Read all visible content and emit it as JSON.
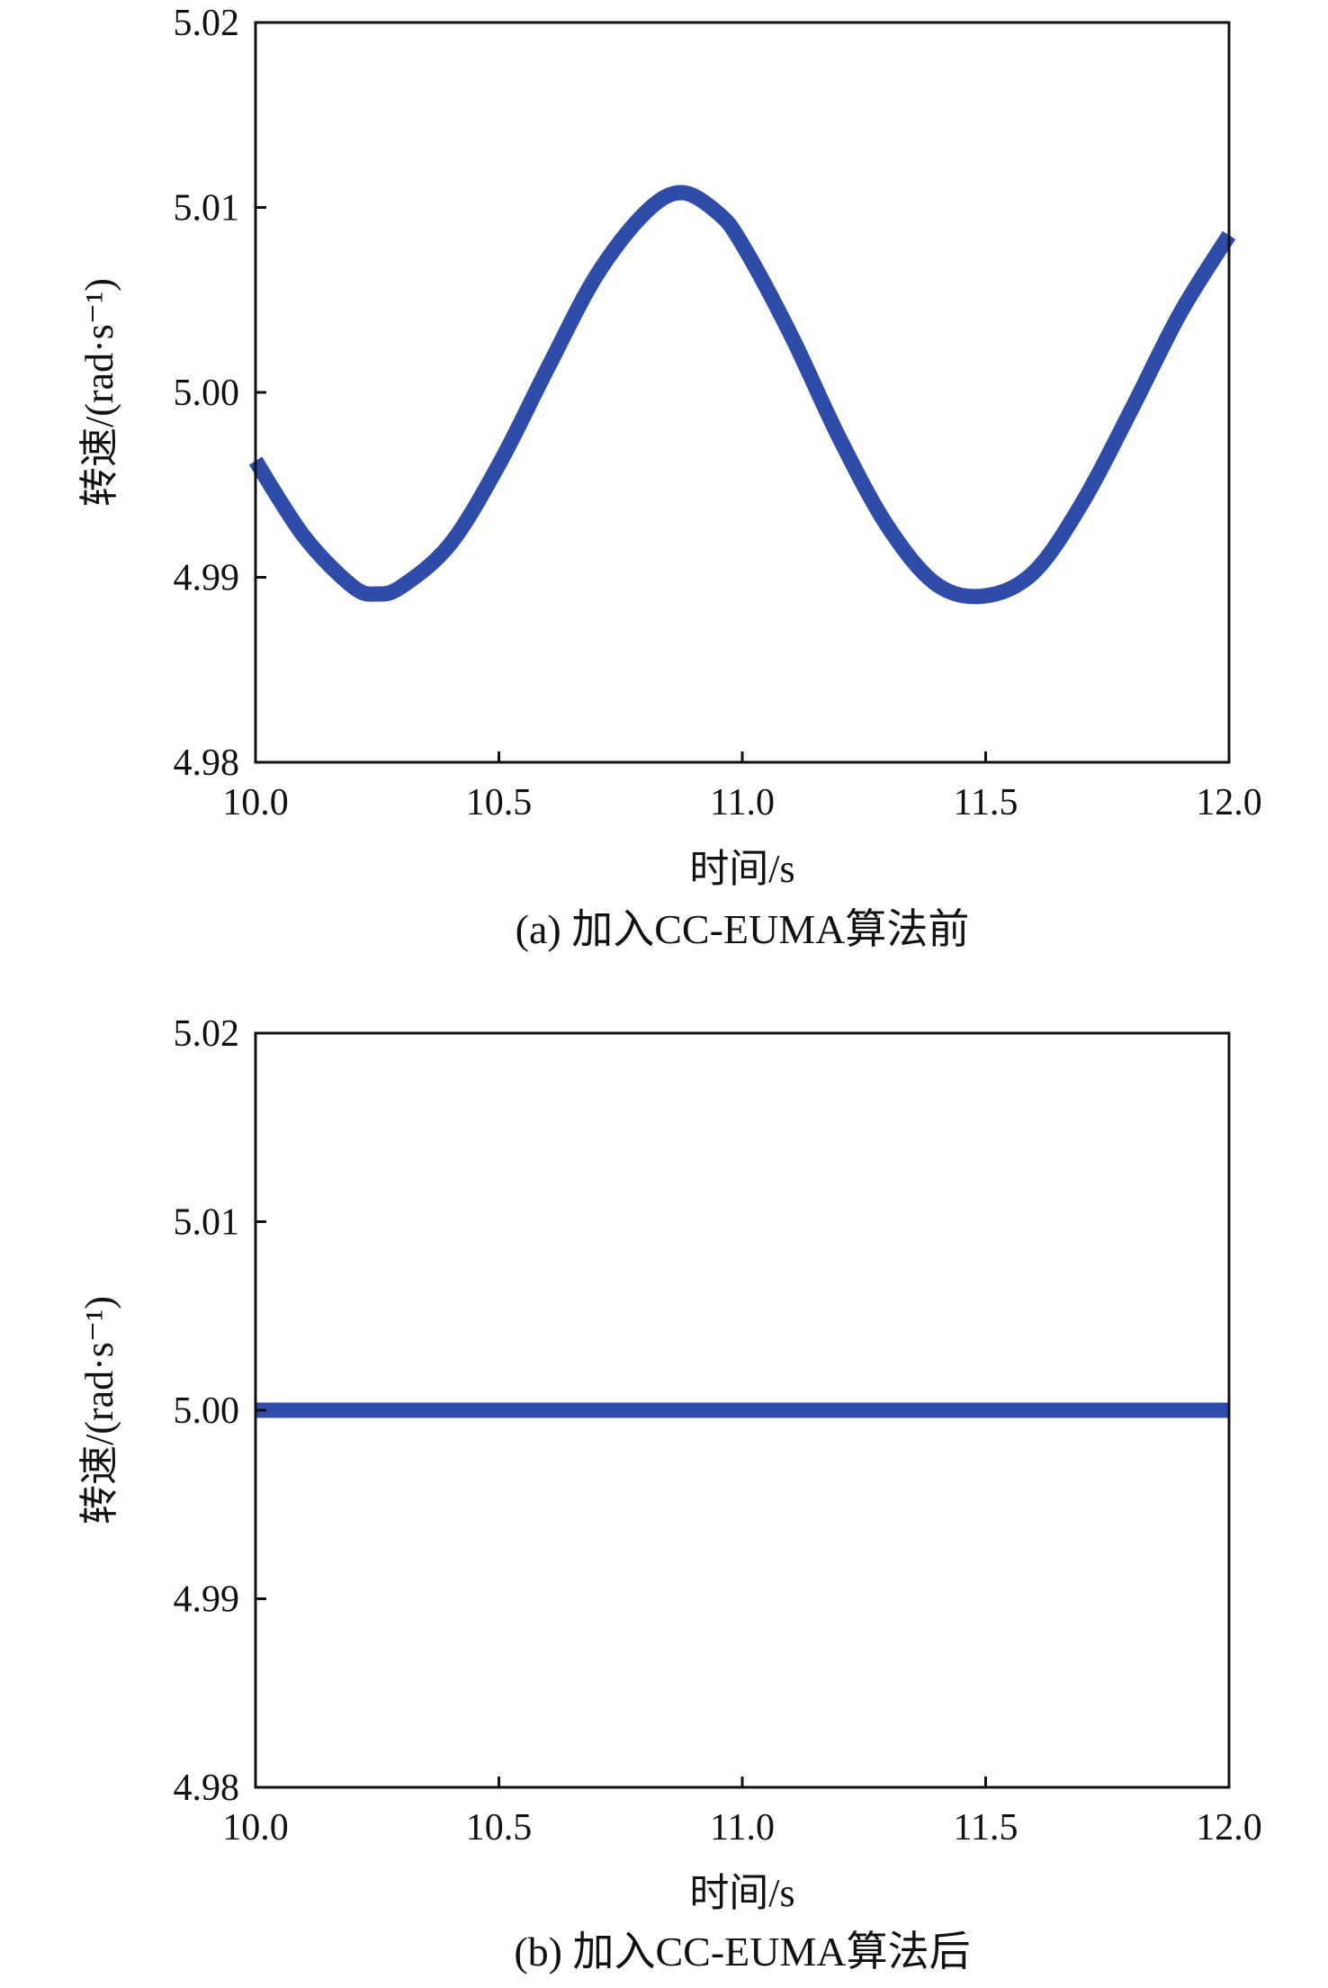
{
  "chart_data": [
    {
      "type": "line",
      "caption": "(a) 加入CC-EUMA算法前",
      "xlabel": "时间/s",
      "ylabel": "转速/(rad·s⁻¹)",
      "xlim": [
        10.0,
        12.0
      ],
      "ylim": [
        4.98,
        5.02
      ],
      "xticks": [
        "10.0",
        "10.5",
        "11.0",
        "11.5",
        "12.0"
      ],
      "yticks": [
        "4.98",
        "4.99",
        "5.00",
        "5.01",
        "5.02"
      ],
      "grid": false,
      "line_color": "#2E4CA8",
      "series": [
        {
          "x": [
            10.0,
            10.1,
            10.2,
            10.25,
            10.3,
            10.4,
            10.5,
            10.6,
            10.7,
            10.8,
            10.875,
            10.95,
            11.0,
            11.1,
            11.2,
            11.3,
            11.4,
            11.5,
            11.6,
            11.7,
            11.8,
            11.9,
            12.0
          ],
          "y": [
            4.9963,
            4.9922,
            4.9895,
            4.9891,
            4.9895,
            4.9918,
            4.9961,
            5.0013,
            5.0063,
            5.0097,
            5.0108,
            5.0097,
            5.008,
            5.0031,
            4.9975,
            4.9927,
            4.9896,
            4.989,
            4.9903,
            4.9941,
            4.9991,
            5.0043,
            5.0085
          ]
        }
      ]
    },
    {
      "type": "line",
      "caption": "(b) 加入CC-EUMA算法后",
      "xlabel": "时间/s",
      "ylabel": "转速/(rad·s⁻¹)",
      "xlim": [
        10.0,
        12.0
      ],
      "ylim": [
        4.98,
        5.02
      ],
      "xticks": [
        "10.0",
        "10.5",
        "11.0",
        "11.5",
        "12.0"
      ],
      "yticks": [
        "4.98",
        "4.99",
        "5.00",
        "5.01",
        "5.02"
      ],
      "grid": false,
      "line_color": "#2E4CA8",
      "series": [
        {
          "x": [
            10.0,
            10.25,
            10.5,
            10.75,
            11.0,
            11.25,
            11.5,
            11.75,
            12.0
          ],
          "y": [
            5.0,
            5.0,
            5.0,
            5.0,
            5.0,
            5.0,
            5.0,
            5.0,
            5.0
          ]
        }
      ]
    }
  ]
}
